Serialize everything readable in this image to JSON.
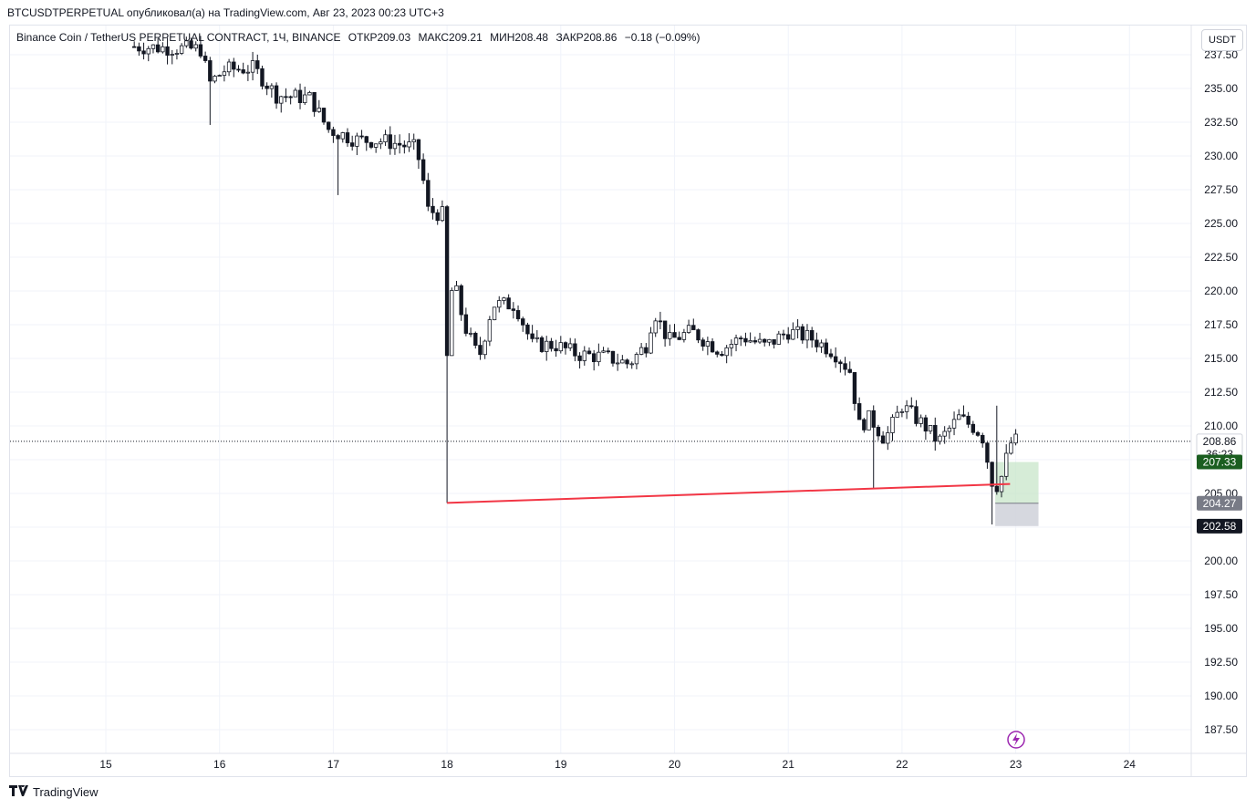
{
  "header": {
    "published_line": "BTCUSDTPERPETUAL опубликовал(а) на TradingView.com, Авг 23, 2023 00:23 UTC+3"
  },
  "legend": {
    "symbol": "Binance Coin / TetherUS PERPETUAL CONTRACT, 1Ч, BINANCE",
    "open": "ОТКР209.03",
    "high": "МАКС209.21",
    "low": "МИН208.48",
    "close": "ЗАКР208.86",
    "change": "−0.18 (−0.09%)"
  },
  "currency_button": "USDT",
  "footer": {
    "brand": "TradingView",
    "logo_icon": "tradingview-logo-icon"
  },
  "colors": {
    "candle": "#131722",
    "trendline": "#f23645",
    "target_zone": "#c8e6c9",
    "stop_zone": "#d1d4dc",
    "current_price_tag": "#131722",
    "target_tag": "#1b5e20",
    "entry_tag": "#787b86"
  },
  "chart_data": {
    "type": "candlestick",
    "title": "",
    "ylim": [
      186.8,
      238.2
    ],
    "y_ticks": [
      "237.50",
      "235.00",
      "232.50",
      "230.00",
      "227.50",
      "225.00",
      "222.50",
      "220.00",
      "217.50",
      "215.00",
      "212.50",
      "210.00",
      "207.50",
      "205.00",
      "202.50",
      "200.00",
      "197.50",
      "195.00",
      "192.50",
      "190.00",
      "187.50"
    ],
    "x_ticks": [
      "15",
      "16",
      "17",
      "18",
      "19",
      "20",
      "21",
      "22",
      "23",
      "24"
    ],
    "current_price": {
      "value": "208.86",
      "countdown": "36:23"
    },
    "price_tags": [
      {
        "value": "207.33",
        "role": "target"
      },
      {
        "value": "204.27",
        "role": "entry"
      },
      {
        "value": "202.58",
        "role": "stop"
      }
    ],
    "trendline": {
      "from": {
        "x": 18.0,
        "y": 204.3
      },
      "to": {
        "x": 22.95,
        "y": 205.7
      }
    },
    "long_position": {
      "x_start": 22.82,
      "x_end": 23.2,
      "target": 207.33,
      "entry": 204.27,
      "stop": 202.58
    },
    "icons": {
      "event_marker": "lightning-icon"
    },
    "anchors": [
      [
        15.25,
        238.1
      ],
      [
        15.55,
        238.0
      ],
      [
        15.85,
        237.9
      ],
      [
        15.9,
        235.3
      ],
      [
        16.05,
        236.4
      ],
      [
        16.3,
        236.5
      ],
      [
        16.5,
        234.5
      ],
      [
        16.8,
        234.3
      ],
      [
        16.95,
        232.0
      ],
      [
        17.2,
        231.2
      ],
      [
        17.45,
        231.1
      ],
      [
        17.72,
        230.6
      ],
      [
        17.78,
        229.0
      ],
      [
        17.82,
        226.0
      ],
      [
        17.98,
        225.6
      ],
      [
        18.0,
        215.0
      ],
      [
        18.05,
        221.0
      ],
      [
        18.15,
        217.5
      ],
      [
        18.28,
        215.0
      ],
      [
        18.4,
        219.0
      ],
      [
        18.6,
        219.0
      ],
      [
        18.75,
        216.0
      ],
      [
        18.95,
        216.0
      ],
      [
        19.15,
        215.3
      ],
      [
        19.4,
        215.1
      ],
      [
        19.6,
        214.6
      ],
      [
        19.75,
        216.0
      ],
      [
        19.82,
        218.5
      ],
      [
        19.95,
        216.3
      ],
      [
        20.15,
        217.0
      ],
      [
        20.4,
        215.6
      ],
      [
        20.6,
        216.6
      ],
      [
        20.8,
        215.9
      ],
      [
        21.0,
        217.0
      ],
      [
        21.2,
        216.5
      ],
      [
        21.4,
        215.5
      ],
      [
        21.55,
        214.0
      ],
      [
        21.62,
        210.0
      ],
      [
        21.72,
        210.6
      ],
      [
        21.85,
        209.0
      ],
      [
        22.0,
        211.5
      ],
      [
        22.2,
        210.0
      ],
      [
        22.32,
        208.8
      ],
      [
        22.5,
        210.6
      ],
      [
        22.65,
        209.8
      ],
      [
        22.72,
        209.0
      ],
      [
        22.78,
        206.0
      ],
      [
        22.85,
        205.5
      ],
      [
        22.9,
        207.0
      ],
      [
        22.95,
        208.7
      ],
      [
        23.0,
        208.9
      ]
    ]
  }
}
